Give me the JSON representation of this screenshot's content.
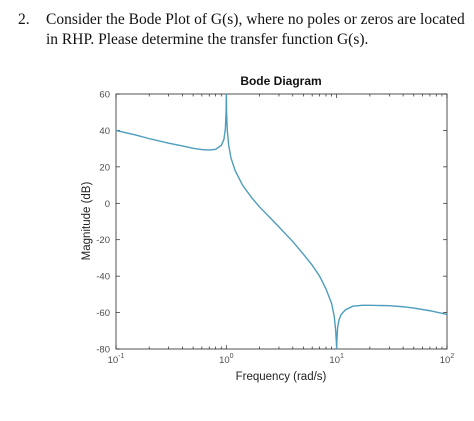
{
  "question": {
    "number": "2.",
    "text": "Consider the Bode Plot of G(s), where no poles or zeros are located in RHP. Please determine the transfer function G(s)."
  },
  "chart_data": {
    "type": "line",
    "title": "Bode Diagram",
    "xlabel": "Frequency (rad/s)",
    "ylabel": "Magnitude (dB)",
    "xscale": "log",
    "xlim": [
      0.1,
      100
    ],
    "ylim": [
      -80,
      60
    ],
    "yticks": [
      "60",
      "40",
      "20",
      "0",
      "-20",
      "-40",
      "-60",
      "-80"
    ],
    "xticks": [
      {
        "base": "10",
        "exp": "-1",
        "value": 0.1
      },
      {
        "base": "10",
        "exp": "0",
        "value": 1
      },
      {
        "base": "10",
        "exp": "1",
        "value": 10
      },
      {
        "base": "10",
        "exp": "2",
        "value": 100
      }
    ],
    "grid": false,
    "line_color": "#4e9dbd",
    "series": [
      {
        "x": [
          0.1,
          0.15,
          0.2,
          0.3,
          0.4,
          0.5,
          0.6,
          0.7,
          0.8,
          0.9,
          0.95,
          0.98,
          0.995,
          1.0,
          1.005,
          1.02,
          1.05,
          1.1,
          1.2,
          1.4,
          1.7,
          2.0,
          2.5,
          3.0,
          4.0,
          5.0,
          6.0,
          7.0,
          8.0,
          9.0,
          9.5,
          9.8,
          9.95,
          10.0,
          10.05,
          10.2,
          10.5,
          11,
          12,
          14,
          17,
          20,
          30,
          40,
          50,
          70,
          100
        ],
        "y": [
          40,
          37.5,
          35.5,
          33,
          31.5,
          30.2,
          29.5,
          29.2,
          29.6,
          31.8,
          35,
          41,
          50,
          60,
          50,
          40,
          32,
          25,
          18,
          10,
          3,
          -2,
          -8,
          -13,
          -21,
          -28,
          -34,
          -40,
          -47,
          -55,
          -62,
          -70,
          -77,
          -80,
          -75,
          -68,
          -64,
          -61,
          -58.5,
          -56.5,
          -56,
          -56,
          -56.2,
          -56.8,
          -57.5,
          -59,
          -61
        ]
      }
    ]
  }
}
